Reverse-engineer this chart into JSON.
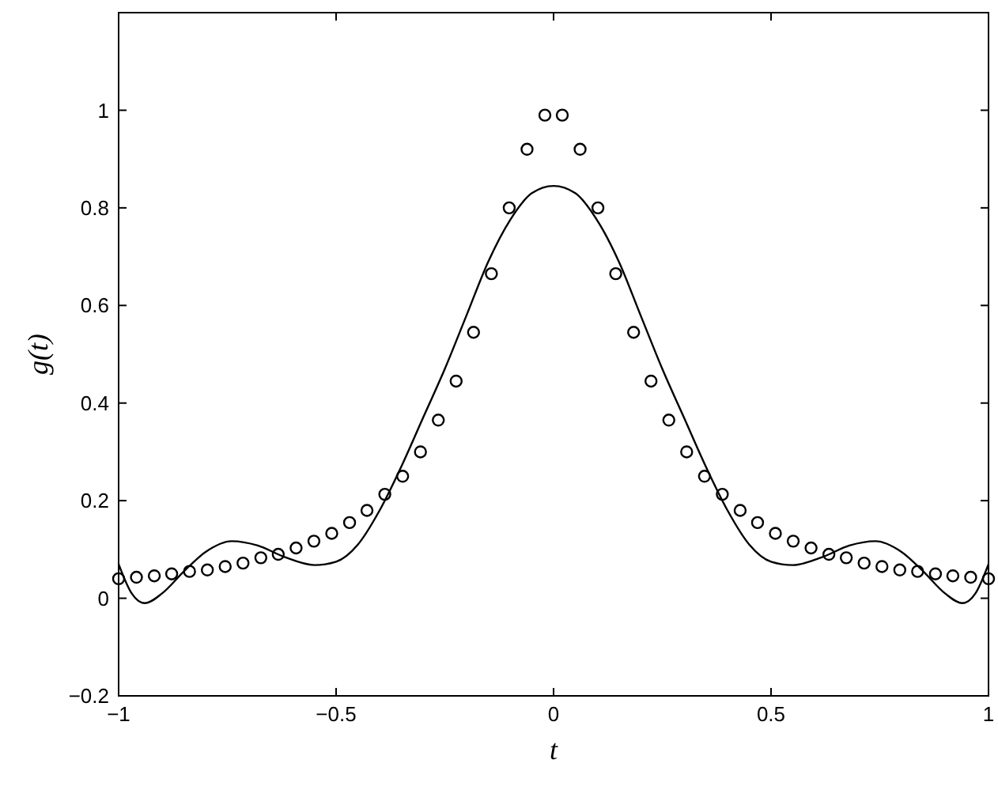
{
  "chart_data": {
    "type": "line",
    "xlabel": "t",
    "ylabel": "g(t)",
    "xlim": [
      -1,
      1
    ],
    "ylim": [
      -0.2,
      1.2
    ],
    "xticks": [
      {
        "value": -1,
        "label": "−1"
      },
      {
        "value": -0.5,
        "label": "−0.5"
      },
      0,
      0.5,
      1
    ],
    "yticks": [
      {
        "value": -0.2,
        "label": "−0.2"
      },
      0,
      0.2,
      0.4,
      0.6,
      0.8,
      1
    ],
    "grid": false,
    "series": [
      {
        "color": "#000000",
        "marker": "none",
        "line_style": "solid",
        "x": [
          -1,
          -0.97,
          -0.94,
          -0.9,
          -0.85,
          -0.8,
          -0.74,
          -0.68,
          -0.62,
          -0.55,
          -0.5,
          -0.45,
          -0.4,
          -0.35,
          -0.3,
          -0.25,
          -0.2,
          -0.15,
          -0.1,
          -0.05,
          0,
          0.05,
          0.1,
          0.15,
          0.2,
          0.25,
          0.3,
          0.35,
          0.4,
          0.45,
          0.5,
          0.55,
          0.62,
          0.68,
          0.74,
          0.8,
          0.85,
          0.9,
          0.94,
          0.97,
          1
        ],
        "values": [
          0.07,
          0.01,
          -0.01,
          0.01,
          0.055,
          0.095,
          0.117,
          0.108,
          0.085,
          0.068,
          0.075,
          0.11,
          0.18,
          0.27,
          0.37,
          0.47,
          0.58,
          0.69,
          0.775,
          0.83,
          0.845,
          0.83,
          0.775,
          0.69,
          0.58,
          0.47,
          0.37,
          0.27,
          0.18,
          0.11,
          0.075,
          0.068,
          0.085,
          0.108,
          0.117,
          0.095,
          0.055,
          0.01,
          -0.01,
          0.01,
          0.07
        ]
      },
      {
        "type": "scatter",
        "color": "#000000",
        "marker": "circle",
        "x": [
          -1,
          -0.959,
          -0.918,
          -0.878,
          -0.837,
          -0.796,
          -0.755,
          -0.714,
          -0.673,
          -0.633,
          -0.592,
          -0.551,
          -0.51,
          -0.469,
          -0.429,
          -0.388,
          -0.347,
          -0.306,
          -0.265,
          -0.224,
          -0.184,
          -0.143,
          -0.102,
          -0.061,
          -0.02,
          0.02,
          0.061,
          0.102,
          0.143,
          0.184,
          0.224,
          0.265,
          0.306,
          0.347,
          0.388,
          0.429,
          0.469,
          0.51,
          0.551,
          0.592,
          0.633,
          0.673,
          0.714,
          0.755,
          0.796,
          0.837,
          0.878,
          0.918,
          0.959,
          1
        ],
        "values": [
          0.04,
          0.043,
          0.046,
          0.05,
          0.055,
          0.058,
          0.065,
          0.072,
          0.083,
          0.09,
          0.103,
          0.117,
          0.133,
          0.155,
          0.18,
          0.213,
          0.25,
          0.3,
          0.365,
          0.445,
          0.545,
          0.665,
          0.8,
          0.92,
          0.99,
          0.99,
          0.92,
          0.8,
          0.665,
          0.545,
          0.445,
          0.365,
          0.3,
          0.25,
          0.213,
          0.18,
          0.155,
          0.133,
          0.117,
          0.103,
          0.09,
          0.083,
          0.072,
          0.065,
          0.058,
          0.055,
          0.05,
          0.046,
          0.043,
          0.04
        ]
      }
    ]
  }
}
